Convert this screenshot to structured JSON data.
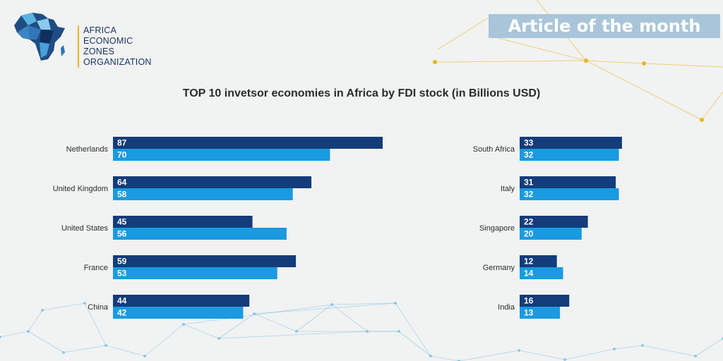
{
  "header": {
    "logo_lines": [
      "AFRICA",
      "ECONOMIC",
      "ZONES",
      "ORGANIZATION"
    ],
    "badge": "Article of the month"
  },
  "colors": {
    "series_dark": "#133c7a",
    "series_light": "#1a9ae0",
    "badge_bg": "#a9c5d9",
    "accent_gold": "#e8b71a",
    "network_blue": "#5ab4e0"
  },
  "chart_data": {
    "type": "bar",
    "orientation": "horizontal",
    "title": "TOP 10 invetsor economies in Africa by FDI stock (in Billions USD)",
    "xlabel": "",
    "ylabel": "",
    "grid": false,
    "legend": "none",
    "xlim": [
      0,
      95
    ],
    "categories": [
      "Netherlands",
      "United Kingdom",
      "United States",
      "France",
      "China",
      "South Africa",
      "Italy",
      "Singapore",
      "Germany",
      "India"
    ],
    "series": [
      {
        "values": [
          87,
          64,
          45,
          59,
          44,
          33,
          31,
          22,
          12,
          16
        ]
      },
      {
        "values": [
          70,
          58,
          56,
          53,
          42,
          32,
          32,
          20,
          14,
          13
        ]
      }
    ]
  }
}
